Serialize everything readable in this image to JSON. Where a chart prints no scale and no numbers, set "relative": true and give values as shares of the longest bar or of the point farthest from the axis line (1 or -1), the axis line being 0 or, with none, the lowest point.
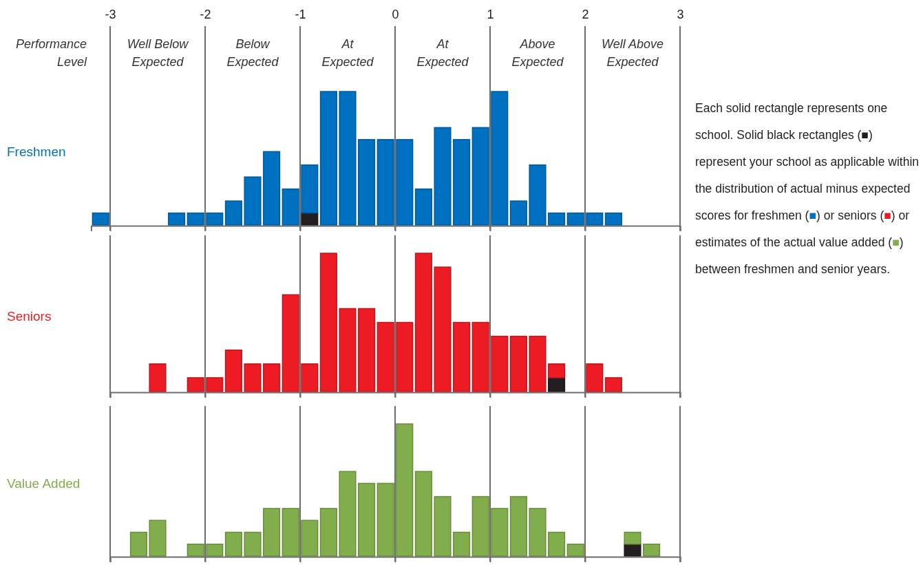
{
  "chart_data": [
    {
      "type": "bar",
      "ylabel": "Freshmen",
      "relative": true,
      "stacked": true,
      "grid": "x",
      "tick_labels": "x",
      "x": [
        -3.1,
        -2.9,
        -2.7,
        -2.5,
        -2.3,
        -2.1,
        -1.9,
        -1.7,
        -1.5,
        -1.3,
        -1.1,
        -0.9,
        -0.7,
        -0.5,
        -0.3,
        -0.1,
        0.1,
        0.3,
        0.5,
        0.7,
        0.9,
        1.1,
        1.3,
        1.5,
        1.7,
        1.9,
        2.1,
        2.3,
        2.5,
        2.7,
        2.9
      ],
      "xlim": [
        -3.2,
        3
      ],
      "xticks": [
        {
          "value": -3,
          "label": "-3"
        },
        {
          "value": -2,
          "label": "-2"
        },
        {
          "value": -1,
          "label": "-1"
        },
        {
          "value": 0,
          "label": "0"
        },
        {
          "value": 1,
          "label": "1"
        },
        {
          "value": 2,
          "label": "2"
        },
        {
          "value": 3,
          "label": "3"
        }
      ],
      "series": [
        {
          "color": "#231f20",
          "values": [
            0,
            0,
            0,
            0,
            0,
            0,
            0,
            0,
            0,
            0,
            0,
            0.09,
            0,
            0,
            0,
            0,
            0,
            0,
            0,
            0,
            0,
            0,
            0,
            0,
            0,
            0,
            0,
            0,
            0,
            0,
            0
          ]
        },
        {
          "color": "#0070c0",
          "values": [
            0.09,
            0,
            0,
            0,
            0.09,
            0.09,
            0.09,
            0.18,
            0.36,
            0.55,
            0.27,
            0.36,
            1,
            1,
            0.64,
            0.64,
            0.64,
            0.27,
            0.73,
            0.64,
            0.73,
            1,
            0.18,
            0.45,
            0.09,
            0.09,
            0.09,
            0.09,
            0,
            0,
            0
          ]
        }
      ],
      "annotations": [
        "Performance Level",
        "Well Below Expected",
        "Below Expected",
        "At Expected",
        "At Expected",
        "Above Expected",
        "Well Above Expected",
        "Each solid rectangle represents one school. Solid black rectangles (■) represent your school as applicable within the distribution of actual minus expected scores for freshmen (■) or seniors (■) or estimates of the actual value added (■) between freshmen and senior years."
      ]
    },
    {
      "type": "bar",
      "ylabel": "Seniors",
      "relative": true,
      "stacked": true,
      "grid": "x",
      "tick_labels": false,
      "x": [
        -2.9,
        -2.7,
        -2.5,
        -2.3,
        -2.1,
        -1.9,
        -1.7,
        -1.5,
        -1.3,
        -1.1,
        -0.9,
        -0.7,
        -0.5,
        -0.3,
        -0.1,
        0.1,
        0.3,
        0.5,
        0.7,
        0.9,
        1.1,
        1.3,
        1.5,
        1.7,
        1.9,
        2.1,
        2.3,
        2.5,
        2.7,
        2.9
      ],
      "xlim": [
        -3,
        3
      ],
      "xticks": [
        -3,
        -2,
        -1,
        0,
        1,
        2,
        3
      ],
      "series": [
        {
          "color": "#231f20",
          "values": [
            0,
            0,
            0,
            0,
            0,
            0,
            0,
            0,
            0,
            0,
            0,
            0,
            0,
            0,
            0,
            0,
            0,
            0,
            0,
            0,
            0,
            0,
            0,
            0.1,
            0,
            0,
            0,
            0,
            0,
            0
          ]
        },
        {
          "color": "#ed1c24",
          "values": [
            0,
            0,
            0.2,
            0,
            0.1,
            0.1,
            0.3,
            0.2,
            0.2,
            0.7,
            0.2,
            1,
            0.6,
            0.6,
            0.5,
            0.5,
            1,
            0.9,
            0.5,
            0.5,
            0.4,
            0.4,
            0.4,
            0.1,
            0,
            0.2,
            0.1,
            0,
            0,
            0
          ]
        }
      ]
    },
    {
      "type": "bar",
      "ylabel": "Value Added",
      "relative": true,
      "stacked": true,
      "grid": "x",
      "tick_labels": false,
      "x": [
        -2.9,
        -2.7,
        -2.5,
        -2.3,
        -2.1,
        -1.9,
        -1.7,
        -1.5,
        -1.3,
        -1.1,
        -0.9,
        -0.7,
        -0.5,
        -0.3,
        -0.1,
        0.1,
        0.3,
        0.5,
        0.7,
        0.9,
        1.1,
        1.3,
        1.5,
        1.7,
        1.9,
        2.1,
        2.3,
        2.5,
        2.7,
        2.9
      ],
      "xlim": [
        -3,
        3
      ],
      "xticks": [
        -3,
        -2,
        -1,
        0,
        1,
        2,
        3
      ],
      "series": [
        {
          "color": "#231f20",
          "values": [
            0,
            0,
            0,
            0,
            0,
            0,
            0,
            0,
            0,
            0,
            0,
            0,
            0,
            0,
            0,
            0,
            0,
            0,
            0,
            0,
            0,
            0,
            0,
            0,
            0,
            0,
            0,
            0.09,
            0,
            0
          ]
        },
        {
          "color": "#82ad4c",
          "values": [
            0,
            0.18,
            0.27,
            0,
            0.09,
            0.09,
            0.18,
            0.18,
            0.36,
            0.36,
            0.27,
            0.36,
            0.64,
            0.55,
            0.55,
            1,
            0.64,
            0.45,
            0.18,
            0.45,
            0.36,
            0.45,
            0.36,
            0.18,
            0.09,
            0,
            0,
            0.09,
            0.09,
            0
          ]
        }
      ]
    }
  ]
}
